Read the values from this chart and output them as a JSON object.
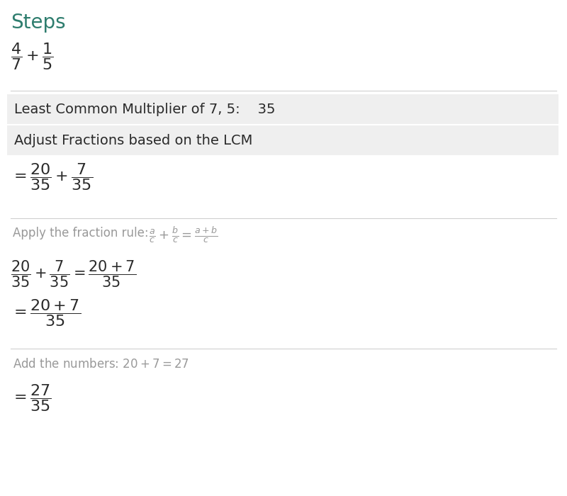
{
  "title": "Steps",
  "title_color": "#2e7d6e",
  "title_fontsize": 20,
  "bg_color": "#ffffff",
  "text_color": "#2a2a2a",
  "gray_bg_color": "#efefef",
  "gray_text_color": "#999999",
  "box1_text": "Least Common Multiplier of 7, 5:    35",
  "box2_text": "Adjust Fractions based on the LCM",
  "line_color": "#d0d0d0",
  "fig_width": 8.0,
  "fig_height": 7.0,
  "dpi": 100
}
